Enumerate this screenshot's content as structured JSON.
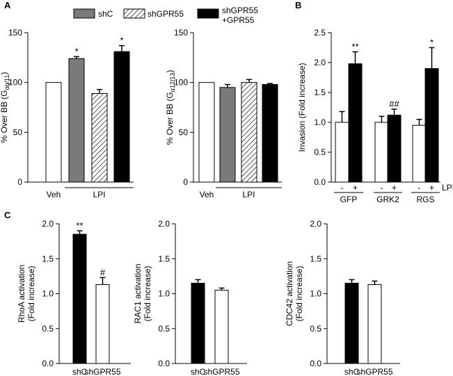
{
  "figure": {
    "panel_labels": [
      "A",
      "B",
      "C"
    ],
    "legend": [
      {
        "label": "shC",
        "fill": "gray"
      },
      {
        "label": "shGPR55",
        "fill": "hatch"
      },
      {
        "label": "shGPR55",
        "label2": "+GPR55",
        "fill": "black"
      }
    ]
  },
  "colors": {
    "gray": "#7a7a7a",
    "black": "#000000",
    "white": "#ffffff",
    "axis": "#000000"
  },
  "chart_data": [
    {
      "id": "A1",
      "type": "bar",
      "ylabel": "% Over BB (Gαq/11)",
      "ylabel_main": "% Over BB (G",
      "ylabel_sub": "αq/11",
      "ylabel_end": ")",
      "ylim": [
        0,
        150
      ],
      "yticks": [
        0,
        50,
        100,
        150
      ],
      "bars": [
        {
          "name": "Veh",
          "value": 100,
          "error": 0,
          "fill": "white",
          "sig": ""
        },
        {
          "name": "shC",
          "value": 124,
          "error": 2,
          "fill": "gray",
          "sig": "*"
        },
        {
          "name": "shGPR55",
          "value": 89,
          "error": 4,
          "fill": "hatch",
          "sig": ""
        },
        {
          "name": "shGPR55+GPR55",
          "value": 131,
          "error": 6,
          "fill": "black",
          "sig": "*"
        }
      ],
      "xlabels": [
        {
          "text": "Veh",
          "from": 0,
          "to": 0,
          "line": false
        },
        {
          "text": "LPI",
          "from": 1,
          "to": 3,
          "line": true
        }
      ]
    },
    {
      "id": "A2",
      "type": "bar",
      "ylabel": "% Over BB (Gα12/13)",
      "ylabel_main": "% Over BB (G",
      "ylabel_sub": "α12/13",
      "ylabel_end": ")",
      "ylim": [
        0,
        150
      ],
      "yticks": [
        0,
        50,
        100,
        150
      ],
      "bars": [
        {
          "name": "Veh",
          "value": 100,
          "error": 0,
          "fill": "white",
          "sig": ""
        },
        {
          "name": "shC",
          "value": 95,
          "error": 3,
          "fill": "gray",
          "sig": ""
        },
        {
          "name": "shGPR55",
          "value": 100,
          "error": 3,
          "fill": "hatch",
          "sig": ""
        },
        {
          "name": "shGPR55+GPR55",
          "value": 98,
          "error": 1,
          "fill": "black",
          "sig": ""
        }
      ],
      "xlabels": [
        {
          "text": "Veh",
          "from": 0,
          "to": 0,
          "line": false
        },
        {
          "text": "LPI",
          "from": 1,
          "to": 3,
          "line": true
        }
      ]
    },
    {
      "id": "B",
      "type": "bar",
      "ylabel": "Invasion (Fold increase)",
      "ylim": [
        0,
        2.5
      ],
      "yticks": [
        0.0,
        0.5,
        1.0,
        1.5,
        2.0,
        2.5
      ],
      "tick_decimals": 1,
      "bars": [
        {
          "name": "GFP -",
          "value": 1.0,
          "error": 0.18,
          "fill": "white",
          "sig": ""
        },
        {
          "name": "GFP +",
          "value": 1.98,
          "error": 0.2,
          "fill": "black",
          "sig": "**"
        },
        {
          "name": "GRK2 -",
          "value": 1.0,
          "error": 0.1,
          "fill": "white",
          "sig": ""
        },
        {
          "name": "GRK2 +",
          "value": 1.12,
          "error": 0.1,
          "fill": "black",
          "sig": "##"
        },
        {
          "name": "RGS -",
          "value": 0.95,
          "error": 0.1,
          "fill": "white",
          "sig": ""
        },
        {
          "name": "RGS +",
          "value": 1.9,
          "error": 0.35,
          "fill": "black",
          "sig": "*"
        }
      ],
      "signs": [
        "-",
        "+",
        "-",
        "+",
        "-",
        "+"
      ],
      "groups": [
        "GFP",
        "GRK2",
        "RGS"
      ],
      "treatment_label": "LPI"
    },
    {
      "id": "C1",
      "type": "bar",
      "ylabel_line1": "RhoA  activation",
      "ylabel_line2": "(Fold increase)",
      "ylim": [
        0,
        2.0
      ],
      "yticks": [
        0.0,
        0.5,
        1.0,
        1.5,
        2.0
      ],
      "tick_decimals": 1,
      "categories": [
        "shC",
        "shGPR55"
      ],
      "bars": [
        {
          "name": "shC",
          "value": 1.85,
          "error": 0.05,
          "fill": "black",
          "sig": "**"
        },
        {
          "name": "shGPR55",
          "value": 1.13,
          "error": 0.1,
          "fill": "white",
          "sig": "#"
        }
      ]
    },
    {
      "id": "C2",
      "type": "bar",
      "ylabel_line1": "RAC1 activation",
      "ylabel_line2": "(Fold increase)",
      "ylim": [
        0,
        2.0
      ],
      "yticks": [
        0.0,
        0.5,
        1.0,
        1.5,
        2.0
      ],
      "tick_decimals": 1,
      "categories": [
        "shC",
        "shGPR55"
      ],
      "bars": [
        {
          "name": "shC",
          "value": 1.15,
          "error": 0.05,
          "fill": "black",
          "sig": ""
        },
        {
          "name": "shGPR55",
          "value": 1.05,
          "error": 0.03,
          "fill": "white",
          "sig": ""
        }
      ]
    },
    {
      "id": "C3",
      "type": "bar",
      "ylabel_line1": "CDC42  activation",
      "ylabel_line2": "(Fold increase)",
      "ylim": [
        0,
        2.0
      ],
      "yticks": [
        0.0,
        0.5,
        1.0,
        1.5,
        2.0
      ],
      "tick_decimals": 1,
      "categories": [
        "shC",
        "shGPR55"
      ],
      "bars": [
        {
          "name": "shC",
          "value": 1.15,
          "error": 0.05,
          "fill": "black",
          "sig": ""
        },
        {
          "name": "shGPR55",
          "value": 1.13,
          "error": 0.05,
          "fill": "white",
          "sig": ""
        }
      ]
    }
  ]
}
